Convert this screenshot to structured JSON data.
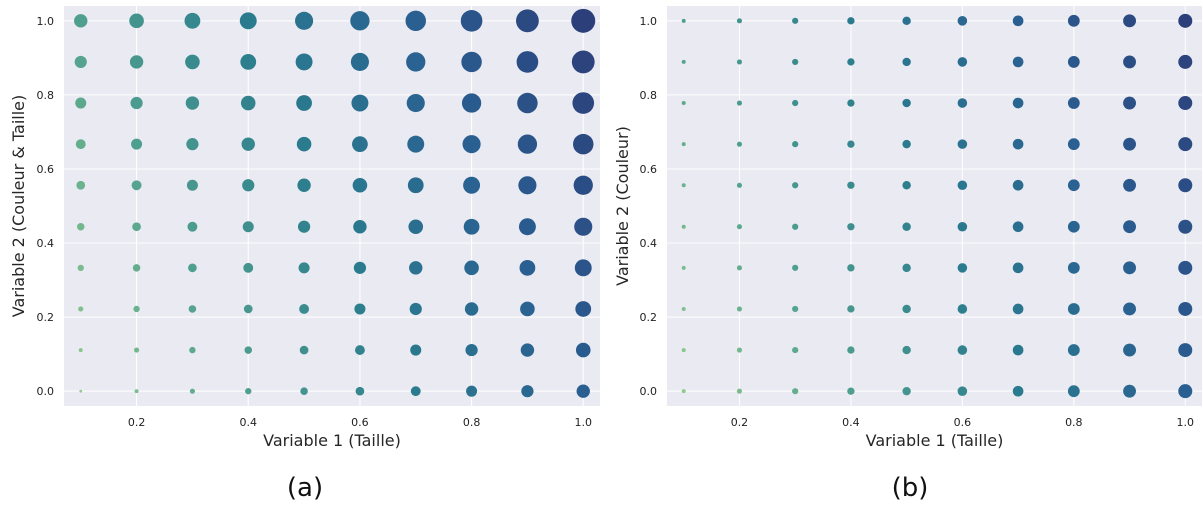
{
  "chart_data": [
    {
      "type": "scatter",
      "caption": "(a)",
      "xlabel": "Variable 1 (Taille)",
      "ylabel": "Variable 2 (Couleur & Taille)",
      "x": [
        0.1,
        0.2,
        0.3,
        0.4,
        0.5,
        0.6,
        0.7,
        0.8,
        0.9,
        1.0
      ],
      "y": [
        0.0,
        0.111,
        0.222,
        0.333,
        0.444,
        0.556,
        0.667,
        0.778,
        0.889,
        1.0
      ],
      "size_encoding": "x and y",
      "color_encoding": "x and y",
      "xlim": [
        0.07,
        1.03
      ],
      "ylim": [
        -0.04,
        1.04
      ],
      "xticks": [
        "0.2",
        "0.4",
        "0.6",
        "0.8",
        "1.0"
      ],
      "yticks": [
        "0.0",
        "0.2",
        "0.4",
        "0.6",
        "0.8",
        "1.0"
      ],
      "grid": true,
      "colormap": [
        "#8fcb8c",
        "#4f9f8f",
        "#2a7b8e",
        "#2a5f92",
        "#2c3f7a"
      ]
    },
    {
      "type": "scatter",
      "caption": "(b)",
      "xlabel": "Variable 1 (Taille)",
      "ylabel": "Variable 2 (Couleur)",
      "x": [
        0.1,
        0.2,
        0.3,
        0.4,
        0.5,
        0.6,
        0.7,
        0.8,
        0.9,
        1.0
      ],
      "y": [
        0.0,
        0.111,
        0.222,
        0.333,
        0.444,
        0.556,
        0.667,
        0.778,
        0.889,
        1.0
      ],
      "size_encoding": "x",
      "color_encoding": "x and y",
      "xlim": [
        0.07,
        1.03
      ],
      "ylim": [
        -0.04,
        1.04
      ],
      "xticks": [
        "0.2",
        "0.4",
        "0.6",
        "0.8",
        "1.0"
      ],
      "yticks": [
        "0.0",
        "0.2",
        "0.4",
        "0.6",
        "0.8",
        "1.0"
      ],
      "grid": true,
      "colormap": [
        "#8fcb8c",
        "#4f9f8f",
        "#2a7b8e",
        "#2a5f92",
        "#2c3f7a"
      ]
    }
  ]
}
